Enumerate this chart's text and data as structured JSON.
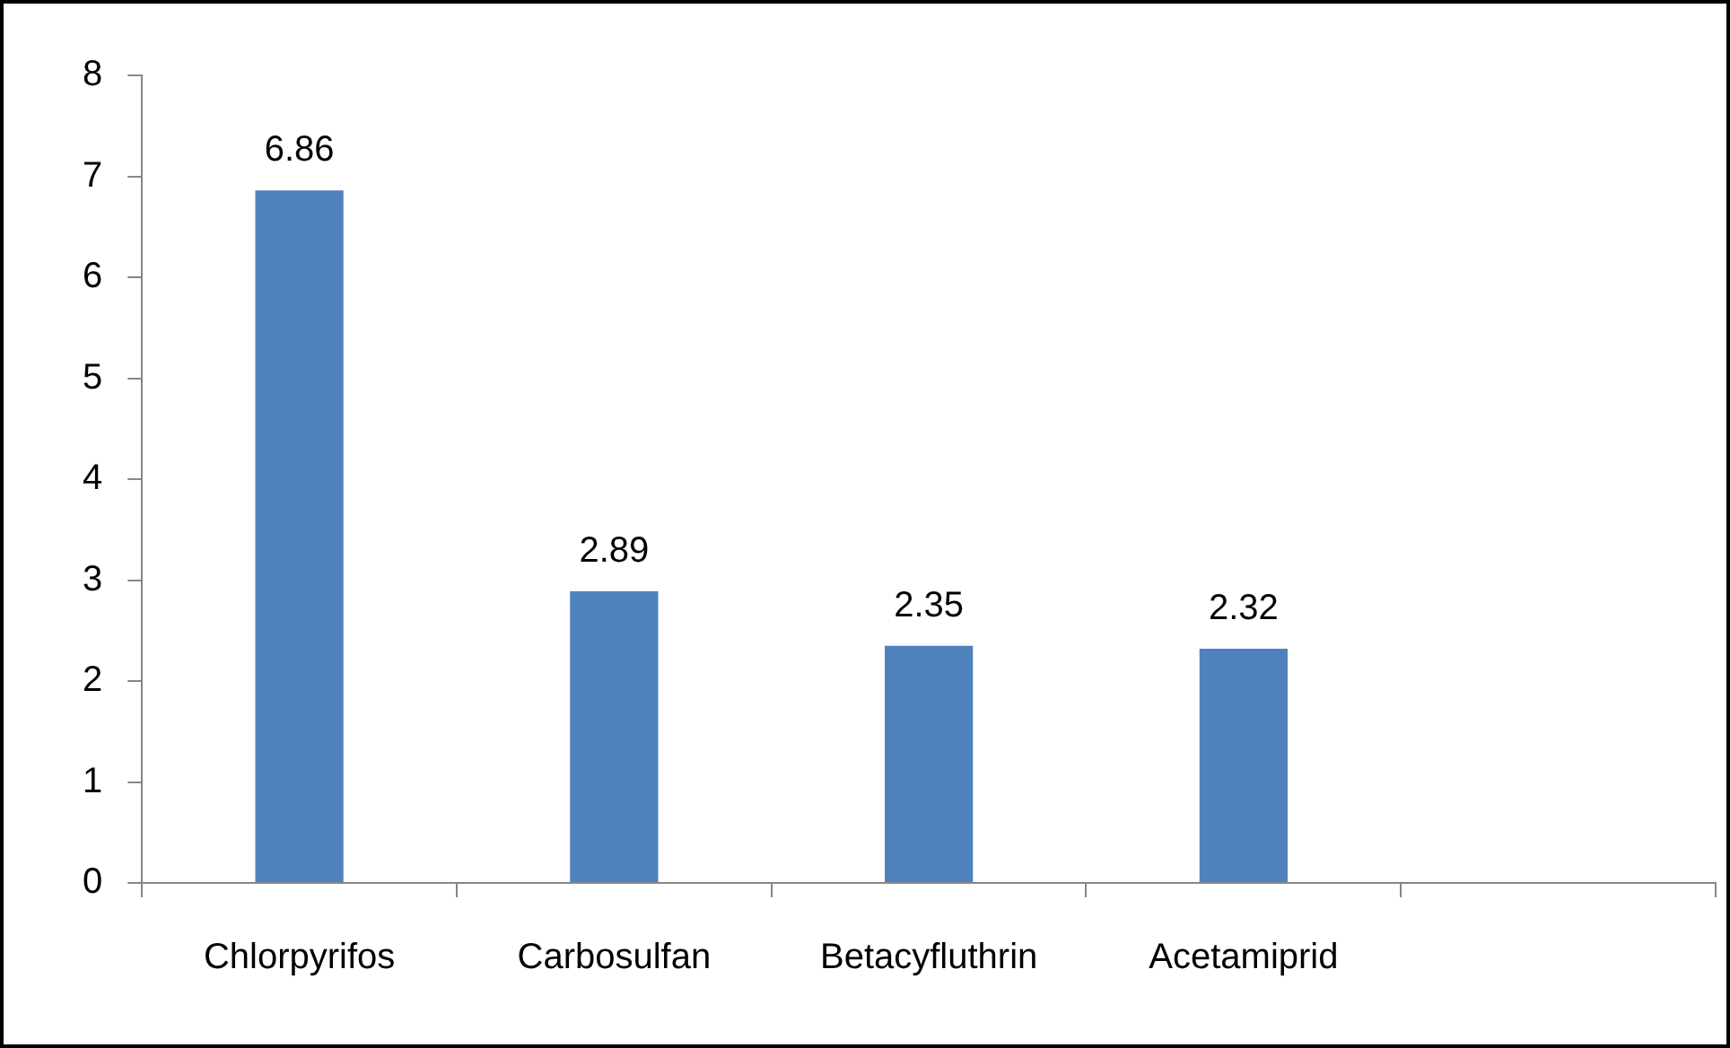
{
  "chart_data": {
    "type": "bar",
    "categories": [
      "Chlorpyrifos",
      "Carbosulfan",
      "Betacyfluthrin",
      "Acetamiprid",
      null
    ],
    "values": [
      6.86,
      2.89,
      2.35,
      2.32,
      null
    ],
    "color": "#4f81bd",
    "ylim": [
      0,
      8
    ],
    "yticks": [
      0,
      1,
      2,
      3,
      4,
      5,
      6,
      7,
      8
    ],
    "data_labels": true,
    "grid": false,
    "legend": false
  }
}
